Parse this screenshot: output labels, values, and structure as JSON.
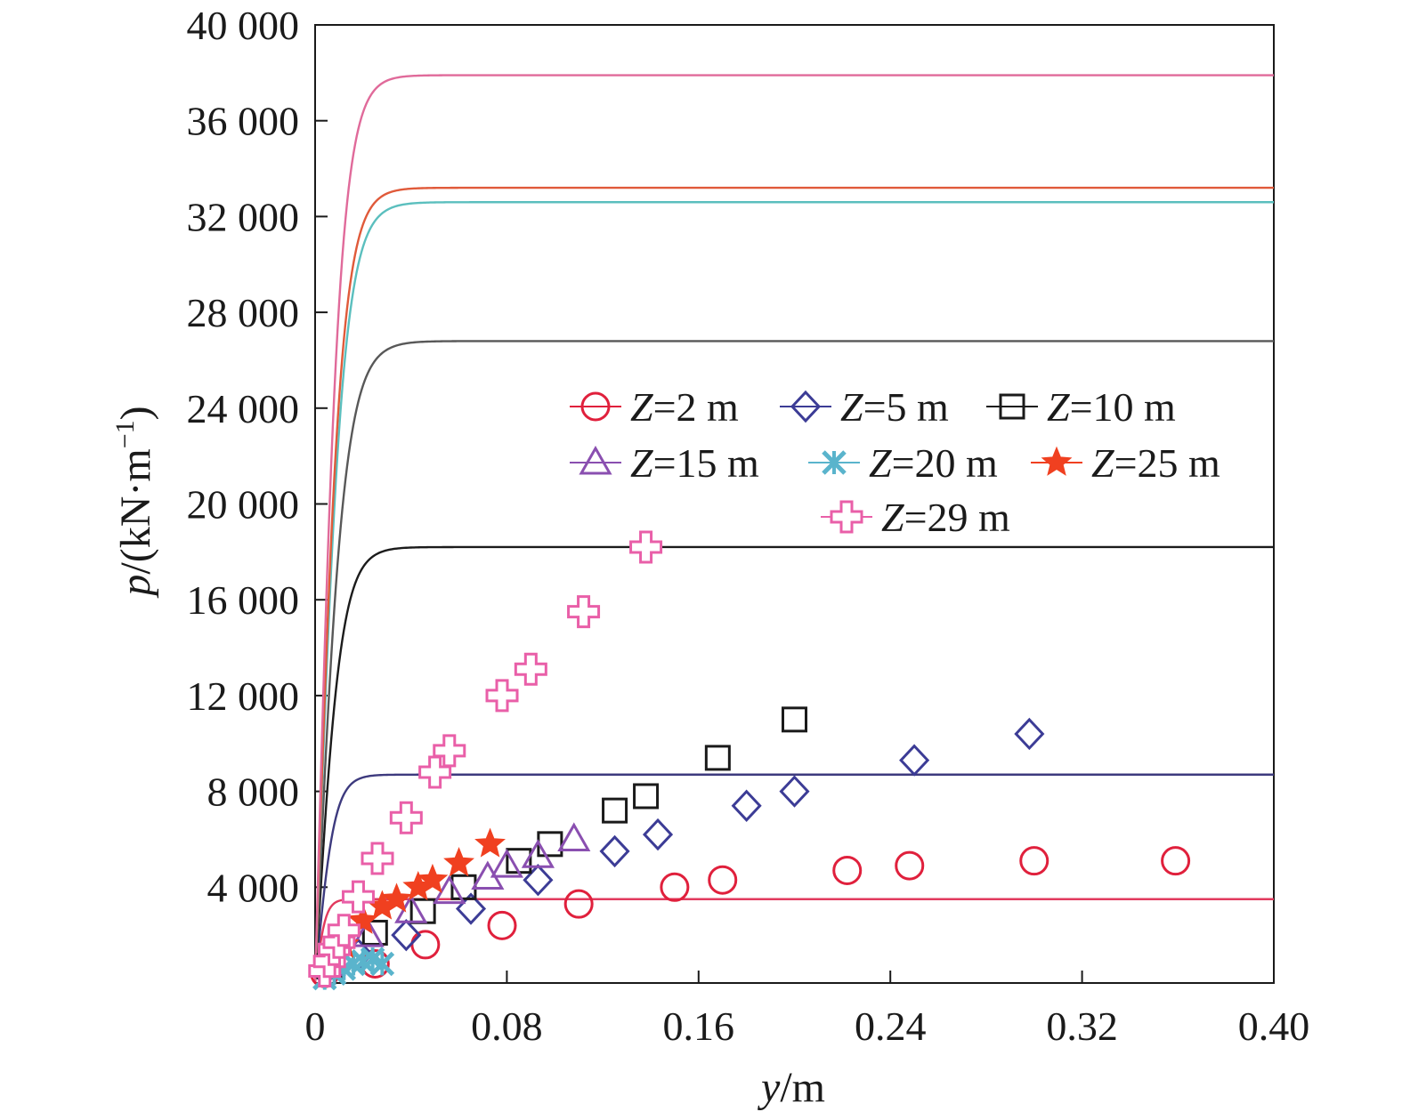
{
  "chart_data": {
    "type": "scatter",
    "xlabel": {
      "var": "y",
      "unit": "/m"
    },
    "ylabel": {
      "var": "p",
      "unit": "/(kN·m",
      "sup": "−1",
      "close": ")"
    },
    "xlim": [
      0,
      0.4
    ],
    "ylim": [
      0,
      40000
    ],
    "x_ticks": [
      0,
      0.08,
      0.16,
      0.24,
      0.32,
      0.4
    ],
    "x_tick_labels": [
      "0",
      "0.08",
      "0.16",
      "0.24",
      "0.32",
      "0.40"
    ],
    "y_ticks": [
      4000,
      8000,
      12000,
      16000,
      20000,
      24000,
      28000,
      32000,
      36000,
      40000
    ],
    "y_tick_labels": [
      "4 000",
      "8 000",
      "12 000",
      "16 000",
      "20 000",
      "24 000",
      "28 000",
      "32 000",
      "36 000",
      "40 000"
    ],
    "grid": false,
    "legend_position": "center-right",
    "curves": [
      {
        "color": "#e23a5e",
        "pult": 3500,
        "k": 0.013
      },
      {
        "color": "#3d3a7e",
        "pult": 8700,
        "k": 0.024
      },
      {
        "color": "#1b1b1b",
        "pult": 18200,
        "k": 0.032
      },
      {
        "color": "#585858",
        "pult": 26800,
        "k": 0.036
      },
      {
        "color": "#5bbfbe",
        "pult": 32600,
        "k": 0.034
      },
      {
        "color": "#e05a3a",
        "pult": 33200,
        "k": 0.032
      },
      {
        "color": "#e06a9a",
        "pult": 37900,
        "k": 0.031
      }
    ],
    "series": [
      {
        "name_var": "Z",
        "name_rest": "=2 m",
        "marker": "circle",
        "color": "#e0203c",
        "points": [
          [
            0.004,
            400
          ],
          [
            0.025,
            800
          ],
          [
            0.046,
            1600
          ],
          [
            0.078,
            2400
          ],
          [
            0.11,
            3300
          ],
          [
            0.15,
            4000
          ],
          [
            0.17,
            4300
          ],
          [
            0.222,
            4700
          ],
          [
            0.248,
            4900
          ],
          [
            0.3,
            5100
          ],
          [
            0.359,
            5100
          ]
        ]
      },
      {
        "name_var": "Z",
        "name_rest": "=5 m",
        "marker": "diamond",
        "color": "#3c3c96",
        "points": [
          [
            0.004,
            500
          ],
          [
            0.018,
            1200
          ],
          [
            0.038,
            2000
          ],
          [
            0.065,
            3100
          ],
          [
            0.093,
            4300
          ],
          [
            0.125,
            5500
          ],
          [
            0.143,
            6200
          ],
          [
            0.18,
            7400
          ],
          [
            0.2,
            8000
          ],
          [
            0.25,
            9300
          ],
          [
            0.298,
            10400
          ]
        ]
      },
      {
        "name_var": "Z",
        "name_rest": "=10 m",
        "marker": "square",
        "color": "#1a1a1a",
        "points": [
          [
            0.006,
            700
          ],
          [
            0.025,
            2100
          ],
          [
            0.045,
            3000
          ],
          [
            0.062,
            4000
          ],
          [
            0.085,
            5100
          ],
          [
            0.098,
            5800
          ],
          [
            0.125,
            7200
          ],
          [
            0.138,
            7800
          ],
          [
            0.168,
            9400
          ],
          [
            0.2,
            11000
          ]
        ]
      },
      {
        "name_var": "Z",
        "name_rest": "=15 m",
        "marker": "triangle",
        "color": "#8a4fb0",
        "points": [
          [
            0.006,
            800
          ],
          [
            0.022,
            2000
          ],
          [
            0.04,
            3000
          ],
          [
            0.056,
            3800
          ],
          [
            0.072,
            4400
          ],
          [
            0.08,
            4900
          ],
          [
            0.093,
            5300
          ],
          [
            0.108,
            6000
          ]
        ]
      },
      {
        "name_var": "Z",
        "name_rest": "=20 m",
        "marker": "asterisk",
        "color": "#5ab4cc",
        "points": [
          [
            0.004,
            200
          ],
          [
            0.008,
            400
          ],
          [
            0.012,
            600
          ],
          [
            0.016,
            800
          ],
          [
            0.02,
            900
          ],
          [
            0.024,
            1000
          ],
          [
            0.028,
            800
          ]
        ]
      },
      {
        "name_var": "Z",
        "name_rest": "=25 m",
        "marker": "star",
        "color": "#f04020",
        "points": [
          [
            0.012,
            1600
          ],
          [
            0.02,
            2600
          ],
          [
            0.028,
            3200
          ],
          [
            0.034,
            3500
          ],
          [
            0.043,
            4000
          ],
          [
            0.049,
            4300
          ],
          [
            0.06,
            5000
          ],
          [
            0.073,
            5800
          ]
        ]
      },
      {
        "name_var": "Z",
        "name_rest": "=29 m",
        "marker": "cross",
        "color": "#e95fa8",
        "points": [
          [
            0.004,
            500
          ],
          [
            0.006,
            900
          ],
          [
            0.008,
            1400
          ],
          [
            0.01,
            1700
          ],
          [
            0.012,
            2200
          ],
          [
            0.018,
            3600
          ],
          [
            0.026,
            5200
          ],
          [
            0.038,
            6900
          ],
          [
            0.05,
            8800
          ],
          [
            0.056,
            9700
          ],
          [
            0.078,
            12000
          ],
          [
            0.09,
            13100
          ],
          [
            0.112,
            15500
          ],
          [
            0.138,
            18200
          ]
        ]
      }
    ]
  }
}
